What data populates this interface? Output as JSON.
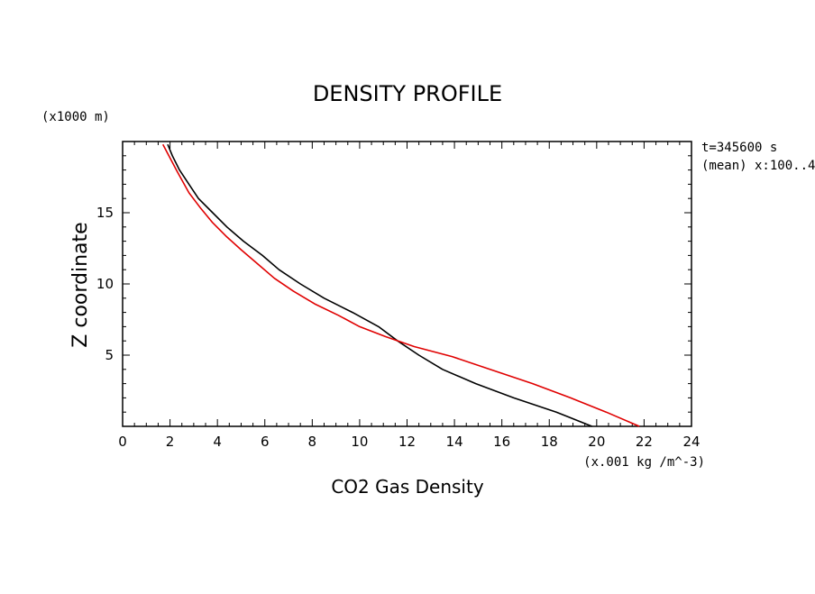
{
  "chart_data": {
    "type": "line",
    "title": "DENSITY PROFILE",
    "xlabel": "CO2 Gas Density",
    "x_units": "(x.001 kg /m^-3)",
    "ylabel": "Z coordinate",
    "y_units": "(x1000 m)",
    "annotations": [
      "t=345600 s",
      "(mean) x:100..4"
    ],
    "xlim": [
      0,
      24
    ],
    "ylim": [
      0,
      20
    ],
    "x_ticks": [
      "0",
      "2",
      "4",
      "6",
      "8",
      "10",
      "12",
      "14",
      "16",
      "18",
      "20",
      "22",
      "24"
    ],
    "y_ticks": [
      "5",
      "10",
      "15"
    ],
    "grid": false,
    "legend": "none",
    "series": [
      {
        "color": "#000000",
        "points": [
          [
            19.8,
            0
          ],
          [
            18.3,
            1
          ],
          [
            16.5,
            2
          ],
          [
            14.9,
            3
          ],
          [
            13.5,
            4
          ],
          [
            12.5,
            5
          ],
          [
            11.6,
            6
          ],
          [
            10.8,
            7
          ],
          [
            9.7,
            8
          ],
          [
            8.5,
            9
          ],
          [
            7.5,
            10
          ],
          [
            6.6,
            11
          ],
          [
            5.9,
            12
          ],
          [
            5.1,
            13
          ],
          [
            4.4,
            14
          ],
          [
            3.8,
            15
          ],
          [
            3.2,
            16
          ],
          [
            2.8,
            17
          ],
          [
            2.4,
            18
          ],
          [
            2.1,
            19
          ],
          [
            1.9,
            19.8
          ]
        ]
      },
      {
        "color": "#e00000",
        "points": [
          [
            21.8,
            0
          ],
          [
            20.4,
            1
          ],
          [
            18.9,
            2
          ],
          [
            17.3,
            3
          ],
          [
            15.5,
            4
          ],
          [
            13.9,
            4.9
          ],
          [
            12.3,
            5.6
          ],
          [
            11.1,
            6.3
          ],
          [
            10.0,
            7.0
          ],
          [
            9.1,
            7.8
          ],
          [
            8.1,
            8.6
          ],
          [
            7.2,
            9.5
          ],
          [
            6.4,
            10.4
          ],
          [
            5.7,
            11.4
          ],
          [
            5.0,
            12.4
          ],
          [
            4.4,
            13.3
          ],
          [
            3.8,
            14.3
          ],
          [
            3.3,
            15.3
          ],
          [
            2.8,
            16.4
          ],
          [
            2.3,
            17.9
          ],
          [
            1.7,
            19.8
          ]
        ]
      }
    ]
  }
}
